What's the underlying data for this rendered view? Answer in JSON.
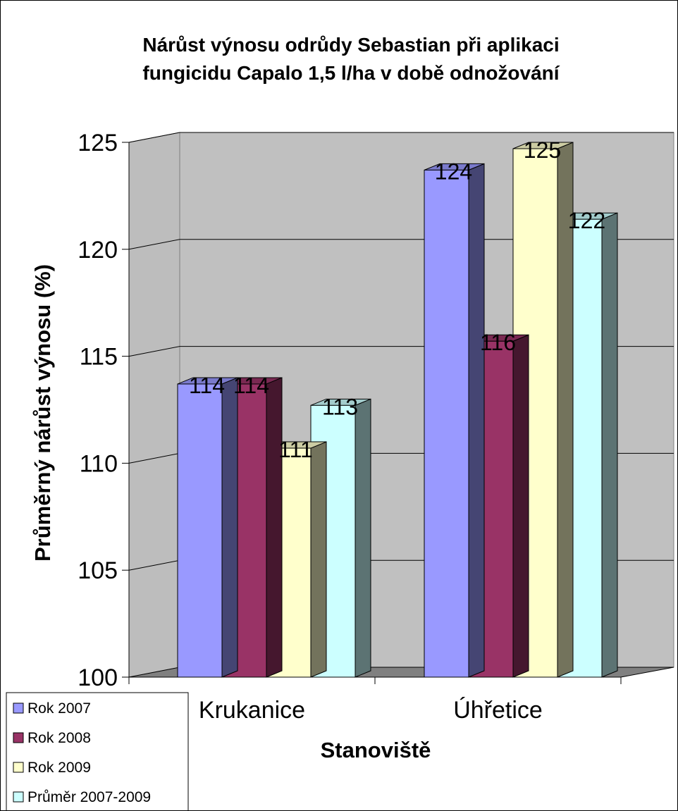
{
  "chart_data": {
    "type": "bar",
    "title": [
      "Nárůst výnosu odrůdy Sebastian při aplikaci",
      "fungicidu Capalo 1,5 l/ha v době odnožování"
    ],
    "xlabel": "Stanoviště",
    "ylabel": "Průměrný nárůst výnosu (%)",
    "categories": [
      "Krukanice",
      "Úhřetice"
    ],
    "ylim": [
      100,
      125
    ],
    "yticks": [
      100,
      105,
      110,
      115,
      120,
      125
    ],
    "grid": true,
    "legend_position": "bottom-left",
    "series": [
      {
        "name": "Rok 2007",
        "values": [
          114,
          124
        ],
        "labels": [
          "114",
          "124"
        ],
        "color": "#9999ff"
      },
      {
        "name": "Rok 2008",
        "values": [
          114,
          116
        ],
        "labels": [
          "114",
          "116"
        ],
        "color": "#993366"
      },
      {
        "name": "Rok 2009",
        "values": [
          111,
          125
        ],
        "labels": [
          "111",
          "125"
        ],
        "color": "#ffffcc"
      },
      {
        "name": "Průměr 2007-2009",
        "values": [
          113,
          121.7
        ],
        "labels": [
          "113",
          "122"
        ],
        "color": "#ccffff"
      }
    ]
  }
}
